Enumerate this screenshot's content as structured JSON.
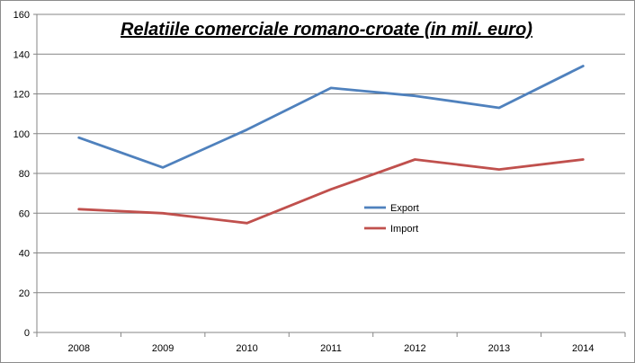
{
  "chart_data": {
    "type": "line",
    "title": "Relatiile comerciale romano-croate (in mil. euro)",
    "xlabel": "",
    "ylabel": "",
    "categories": [
      "2008",
      "2009",
      "2010",
      "2011",
      "2012",
      "2013",
      "2014"
    ],
    "series": [
      {
        "name": "Export",
        "color": "#4f81bd",
        "values": [
          98,
          83,
          102,
          123,
          119,
          113,
          134
        ]
      },
      {
        "name": "Import",
        "color": "#c0504d",
        "values": [
          62,
          60,
          55,
          72,
          87,
          82,
          87
        ]
      }
    ],
    "ylim": [
      0,
      160
    ],
    "yticks": [
      "0",
      "20",
      "40",
      "60",
      "80",
      "100",
      "120",
      "140",
      "160"
    ],
    "grid": "horizontal",
    "legend_position": "center-right"
  }
}
